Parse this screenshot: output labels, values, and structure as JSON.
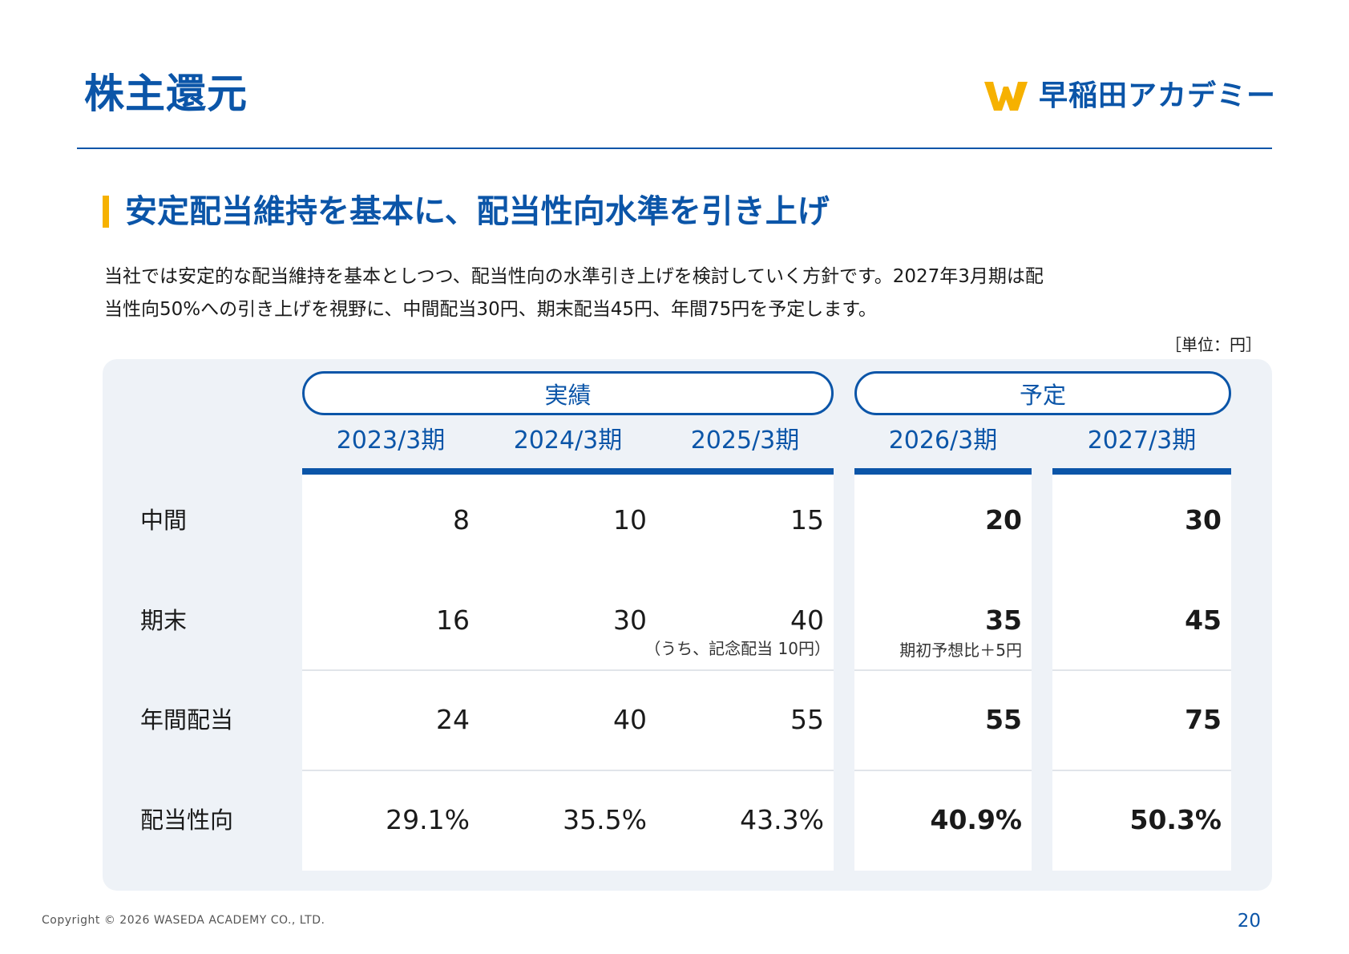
{
  "header": {
    "title": "株主還元",
    "logo_text": "早稲田アカデミー",
    "logo_icon": "waseda-w-logo-icon",
    "accent_color": "#0b55a8",
    "highlight_color": "#f6b100"
  },
  "section": {
    "title": "安定配当維持を基本に、配当性向水準を引き上げ"
  },
  "intro": {
    "line1": "当社では安定的な配当維持を基本としつつ、配当性向の水準引き上げを検討していく方針です。2027年3月期は配",
    "line2": "当性向50%への引き上げを視野に、中間配当30円、期末配当45円、年間75円を予定します。"
  },
  "table": {
    "unit_note": "［単位：円］",
    "groups": {
      "actual": "実績",
      "plan": "予定"
    },
    "columns": [
      "2023/3期",
      "2024/3期",
      "2025/3期",
      "2026/3期",
      "2027/3期"
    ],
    "rows": [
      {
        "label": "中間",
        "values": [
          "8",
          "10",
          "15",
          "20",
          "30"
        ]
      },
      {
        "label": "期末",
        "values": [
          "16",
          "30",
          "40",
          "35",
          "45"
        ],
        "notes": [
          "",
          "",
          "（うち、記念配当 10円）",
          "期初予想比＋5円",
          ""
        ]
      },
      {
        "label": "年間配当",
        "values": [
          "24",
          "40",
          "55",
          "55",
          "75"
        ]
      },
      {
        "label": "配当性向",
        "values": [
          "29.1%",
          "35.5%",
          "43.3%",
          "40.9%",
          "50.3%"
        ]
      }
    ]
  },
  "footer": {
    "copyright": "Copyright © 2026 WASEDA ACADEMY CO., LTD.",
    "page_number": "20"
  }
}
